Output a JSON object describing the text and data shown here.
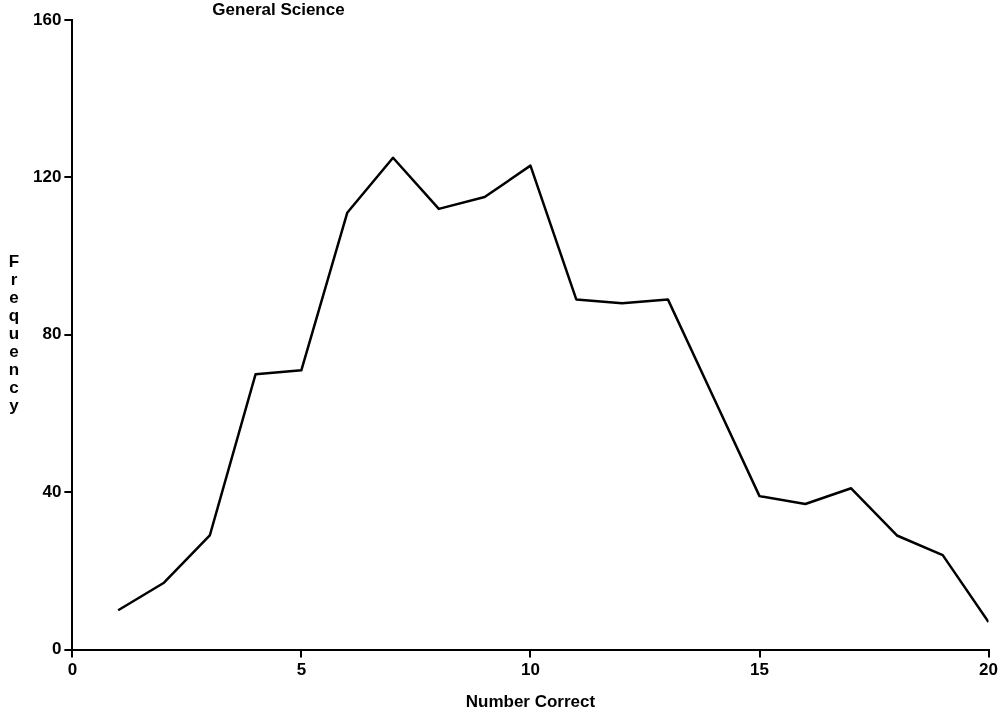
{
  "chart_data": {
    "type": "line",
    "title": "General Science",
    "xlabel": "Number Correct",
    "ylabel": "Frequency",
    "x": [
      1,
      2,
      3,
      4,
      5,
      6,
      7,
      8,
      9,
      10,
      11,
      12,
      13,
      14,
      15,
      16,
      17,
      18,
      19,
      20
    ],
    "series": [
      {
        "color": "#000000",
        "values": [
          10,
          17,
          29,
          70,
          71,
          111,
          125,
          112,
          115,
          123,
          89,
          88,
          89,
          64,
          39,
          37,
          41,
          29,
          24,
          7
        ]
      }
    ],
    "xlim": [
      0,
      20
    ],
    "xticks": [
      0,
      5,
      10,
      15,
      20
    ],
    "ylim": [
      0,
      160
    ],
    "yticks": [
      0,
      40,
      80,
      120,
      160
    ],
    "grid": false,
    "legend": false,
    "marker": "none",
    "line_style": "solid"
  }
}
